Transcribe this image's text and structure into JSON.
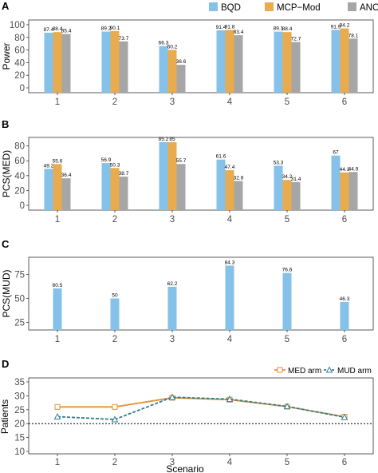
{
  "colors": {
    "BQD": "#85c1e9",
    "MCP-Mod": "#e8ac4f",
    "ANOVA": "#a6a6a6",
    "MED arm": "#e69138",
    "MUD arm": "#2f7f8f",
    "reference_line": "#000000"
  },
  "legend_top": [
    "BQD",
    "MCP−Mod",
    "ANOVA"
  ],
  "legend_d": [
    "MED arm",
    "MUD arm"
  ],
  "chart_data": [
    {
      "panel": "A",
      "type": "bar",
      "ylabel": "Power",
      "categories": [
        "1",
        "2",
        "3",
        "4",
        "5",
        "6"
      ],
      "ylim": [
        0,
        100
      ],
      "yticks": [
        0,
        20,
        40,
        60,
        80,
        100
      ],
      "series": [
        {
          "name": "BQD",
          "values": [
            87.4,
            89.2,
            66.3,
            91.4,
            89.1,
            91.9
          ],
          "labels": [
            "87.4",
            "89.2",
            "66.3",
            "91.4",
            "89.1",
            "91.9"
          ]
        },
        {
          "name": "MCP−Mod",
          "values": [
            88.4,
            90.1,
            60.2,
            91.8,
            88.4,
            94.2
          ],
          "labels": [
            "88.4",
            "90.1",
            "60.2",
            "91.8",
            "88.4",
            "94.2"
          ]
        },
        {
          "name": "ANOVA",
          "values": [
            85.4,
            73.7,
            36.6,
            83.4,
            72.7,
            78.1
          ],
          "labels": [
            "85.4",
            "73.7",
            "36.6",
            "83.4",
            "72.7",
            "78.1"
          ]
        }
      ]
    },
    {
      "panel": "B",
      "type": "bar",
      "ylabel": "PCS(MED)",
      "categories": [
        "1",
        "2",
        "3",
        "4",
        "5",
        "6"
      ],
      "ylim": [
        0,
        85
      ],
      "yticks": [
        0,
        20,
        40,
        60,
        80
      ],
      "series": [
        {
          "name": "BQD",
          "values": [
            49.2,
            56.9,
            85.2,
            61.6,
            53.3,
            67
          ],
          "labels": [
            "49.2",
            "56.9",
            "85.2",
            "61.6",
            "53.3",
            "67"
          ]
        },
        {
          "name": "MCP−Mod",
          "values": [
            55.6,
            50.3,
            85,
            47.4,
            34.2,
            44.3
          ],
          "labels": [
            "55.6",
            "50.3",
            "85",
            "47.4",
            "34.2",
            "44.3"
          ]
        },
        {
          "name": "ANOVA",
          "values": [
            36.4,
            38.7,
            55.7,
            32.8,
            31.4,
            44.9
          ],
          "labels": [
            "36.4",
            "38.7",
            "55.7",
            "32.8",
            "31.4",
            "44.9"
          ]
        }
      ]
    },
    {
      "panel": "C",
      "type": "bar",
      "ylabel": "PCS(MUD)",
      "categories": [
        "1",
        "2",
        "3",
        "4",
        "5",
        "6"
      ],
      "ylim": [
        22,
        88
      ],
      "yticks": [
        25,
        50,
        75
      ],
      "series": [
        {
          "name": "BQD",
          "values": [
            60.5,
            50,
            62.2,
            84.3,
            76.6,
            46.3
          ],
          "labels": [
            "60.5",
            "50",
            "62.2",
            "84.3",
            "76.6",
            "46.3"
          ]
        }
      ]
    },
    {
      "panel": "D",
      "type": "line",
      "xlabel": "Scenario",
      "ylabel": "Patients",
      "x": [
        1,
        2,
        3,
        4,
        5,
        6
      ],
      "xticks": [
        "1",
        "2",
        "3",
        "4",
        "5",
        "6"
      ],
      "ylim": [
        10,
        35
      ],
      "yticks": [
        10,
        15,
        20,
        25,
        30,
        35
      ],
      "reference_line": 20,
      "series": [
        {
          "name": "MED arm",
          "values": [
            26.0,
            26.0,
            29.3,
            28.6,
            26.1,
            22.5
          ],
          "marker": "square",
          "linestyle": "solid"
        },
        {
          "name": "MUD arm",
          "values": [
            22.5,
            21.5,
            29.5,
            28.8,
            26.2,
            22.3
          ],
          "marker": "triangle",
          "linestyle": "dashed"
        }
      ]
    }
  ]
}
